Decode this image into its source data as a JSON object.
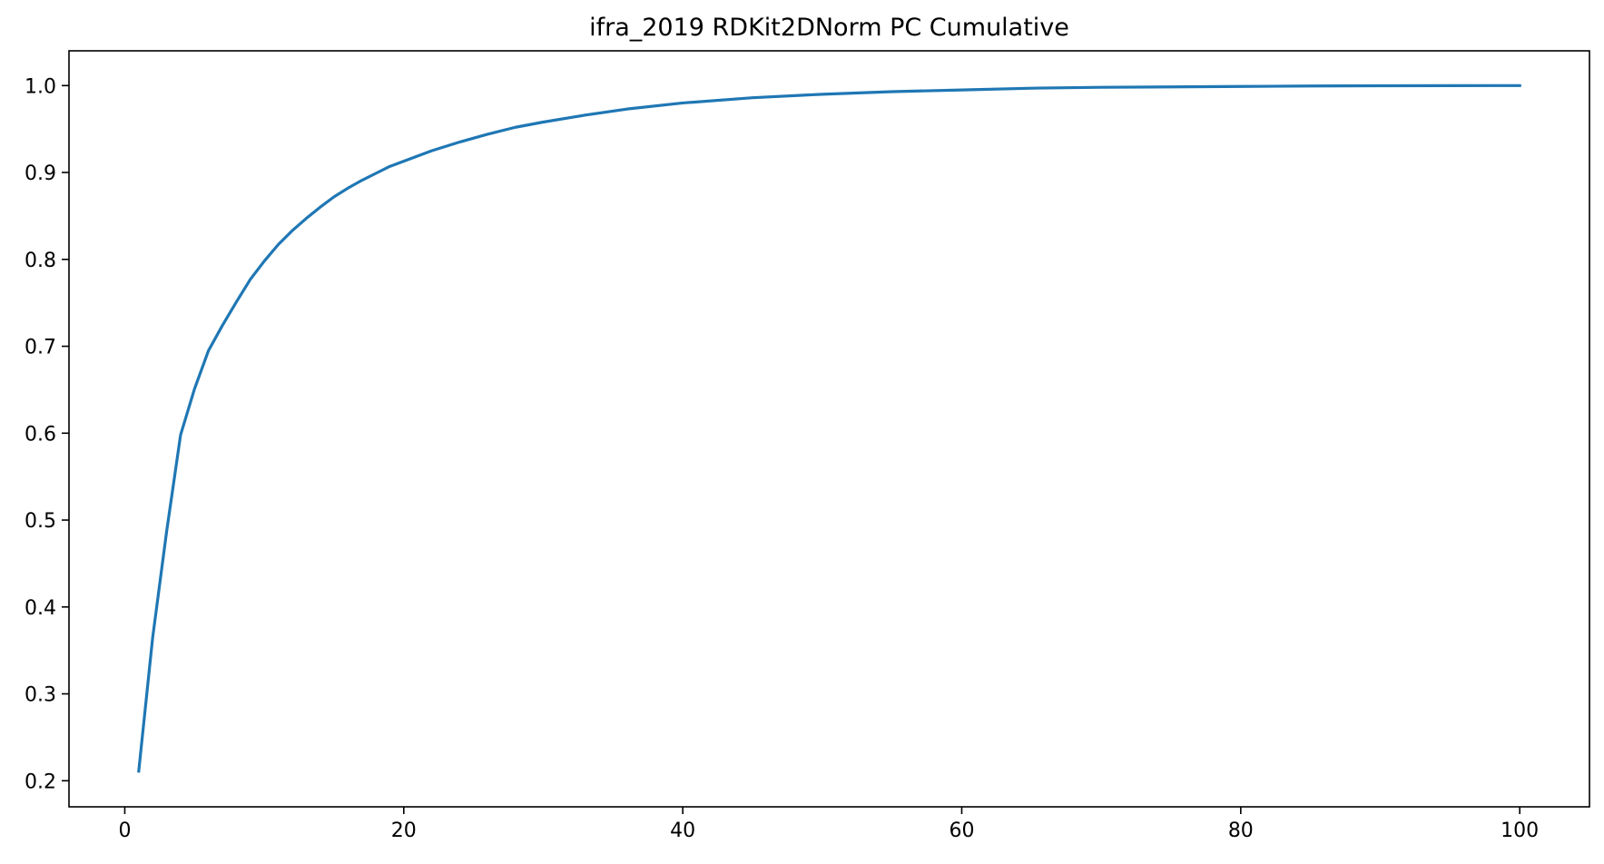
{
  "chart_data": {
    "type": "line",
    "title": "ifra_2019 RDKit2DNorm PC Cumulative",
    "xlabel": "",
    "ylabel": "",
    "xlim": [
      -4,
      105
    ],
    "ylim": [
      0.17,
      1.04
    ],
    "x_ticks": [
      0,
      20,
      40,
      60,
      80,
      100
    ],
    "x_tick_labels": [
      "0",
      "20",
      "40",
      "60",
      "80",
      "100"
    ],
    "y_ticks": [
      0.2,
      0.3,
      0.4,
      0.5,
      0.6,
      0.7,
      0.8,
      0.9,
      1.0
    ],
    "y_tick_labels": [
      "0.2",
      "0.3",
      "0.4",
      "0.5",
      "0.6",
      "0.7",
      "0.8",
      "0.9",
      "1.0"
    ],
    "grid": false,
    "legend": "none",
    "series": [
      {
        "color": "#1f77b4",
        "x": [
          1,
          2,
          3,
          4,
          5,
          6,
          7,
          8,
          9,
          10,
          11,
          12,
          13,
          14,
          15,
          16,
          17,
          18,
          19,
          20,
          22,
          24,
          26,
          28,
          30,
          33,
          36,
          40,
          45,
          50,
          55,
          60,
          65,
          70,
          75,
          80,
          85,
          90,
          95,
          100
        ],
        "y": [
          0.211,
          0.365,
          0.487,
          0.598,
          0.651,
          0.695,
          0.724,
          0.751,
          0.777,
          0.798,
          0.817,
          0.833,
          0.847,
          0.86,
          0.872,
          0.882,
          0.891,
          0.899,
          0.907,
          0.913,
          0.925,
          0.935,
          0.944,
          0.952,
          0.958,
          0.966,
          0.973,
          0.98,
          0.986,
          0.99,
          0.993,
          0.995,
          0.997,
          0.998,
          0.9985,
          0.999,
          0.9995,
          0.9998,
          0.9999,
          1.0
        ]
      }
    ]
  }
}
